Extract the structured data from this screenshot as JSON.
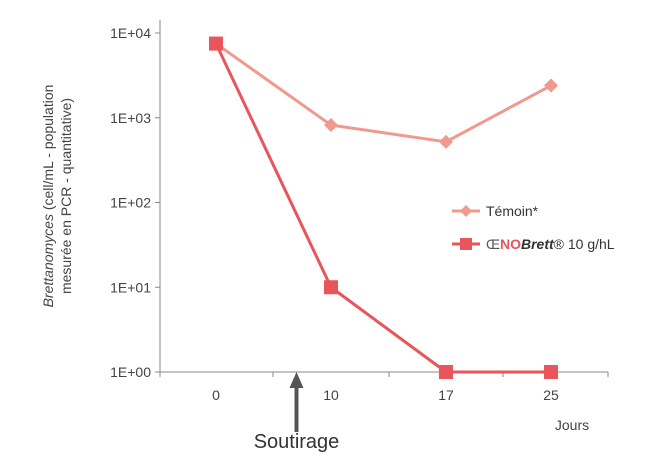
{
  "chart_data": {
    "type": "line",
    "scale": "log",
    "x": [
      "0",
      "10",
      "17",
      "25"
    ],
    "xlabel": "Jours",
    "ylabel_italic": "Brettanomyces",
    "ylabel_line1_rest": " (cell/mL - population",
    "ylabel_line2": "mesurée en PCR - quantitative)",
    "yticks": [
      "1E+00",
      "1E+01",
      "1E+02",
      "1E+03",
      "1E+04"
    ],
    "ylim": [
      1,
      10000
    ],
    "series": [
      {
        "name": "Témoin*",
        "marker": "diamond",
        "color": "#f09a8e",
        "values": [
          7500,
          820,
          520,
          2400
        ]
      },
      {
        "name_prefix_dark": "Œ",
        "name_red": "NO",
        "name_bold": "Brett",
        "name_suffix": "® 10 g/hL",
        "marker": "square",
        "color": "#e8555a",
        "values": [
          7500,
          10,
          1,
          1
        ]
      }
    ],
    "annotation": {
      "text": "Soutirage",
      "at_x": 7
    }
  }
}
